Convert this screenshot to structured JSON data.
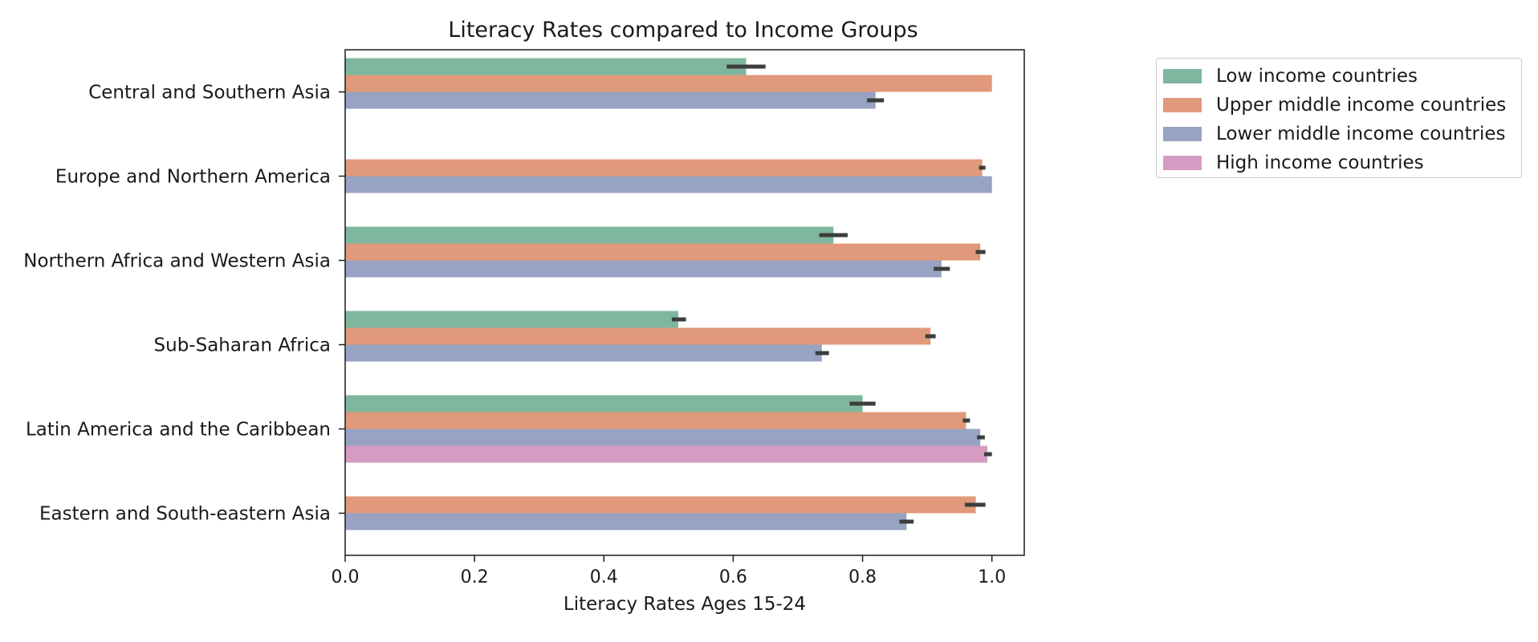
{
  "chart_data": {
    "type": "bar",
    "orientation": "horizontal",
    "title": "Literacy Rates compared to Income Groups",
    "xlabel": "Literacy Rates Ages 15-24",
    "ylabel": "",
    "xlim": [
      0,
      1.05
    ],
    "xticks": [
      0.0,
      0.2,
      0.4,
      0.6,
      0.8,
      1.0
    ],
    "xtick_labels": [
      "0.0",
      "0.2",
      "0.4",
      "0.6",
      "0.8",
      "1.0"
    ],
    "grid": false,
    "legend_position": "outside-upper-right",
    "categories": [
      "Central and Southern Asia",
      "Europe and Northern America",
      "Northern Africa and Western Asia",
      "Sub-Saharan Africa",
      "Latin America and the Caribbean",
      "Eastern and South-eastern Asia"
    ],
    "series": [
      {
        "name": "Low income countries",
        "color": "#7fb69e",
        "values": [
          0.62,
          null,
          0.755,
          0.515,
          0.8,
          null
        ],
        "errors": [
          [
            0.59,
            0.65
          ],
          null,
          [
            0.733,
            0.777
          ],
          [
            0.505,
            0.527
          ],
          [
            0.78,
            0.82
          ],
          null
        ]
      },
      {
        "name": "Upper middle income countries",
        "color": "#e0997a",
        "values": [
          1.0,
          0.985,
          0.982,
          0.905,
          0.96,
          0.975
        ],
        "errors": [
          null,
          [
            0.98,
            0.99
          ],
          [
            0.975,
            0.99
          ],
          [
            0.897,
            0.913
          ],
          [
            0.955,
            0.966
          ],
          [
            0.958,
            0.99
          ]
        ]
      },
      {
        "name": "Lower middle income countries",
        "color": "#98a2c2",
        "values": [
          0.82,
          1.0,
          0.922,
          0.737,
          0.982,
          0.868
        ],
        "errors": [
          [
            0.807,
            0.833
          ],
          null,
          [
            0.91,
            0.935
          ],
          [
            0.727,
            0.748
          ],
          [
            0.977,
            0.989
          ],
          [
            0.857,
            0.879
          ]
        ]
      },
      {
        "name": "High income countries",
        "color": "#d59bc3",
        "values": [
          null,
          null,
          null,
          null,
          0.993,
          null
        ],
        "errors": [
          null,
          null,
          null,
          null,
          [
            0.988,
            1.0
          ],
          null
        ]
      }
    ]
  }
}
